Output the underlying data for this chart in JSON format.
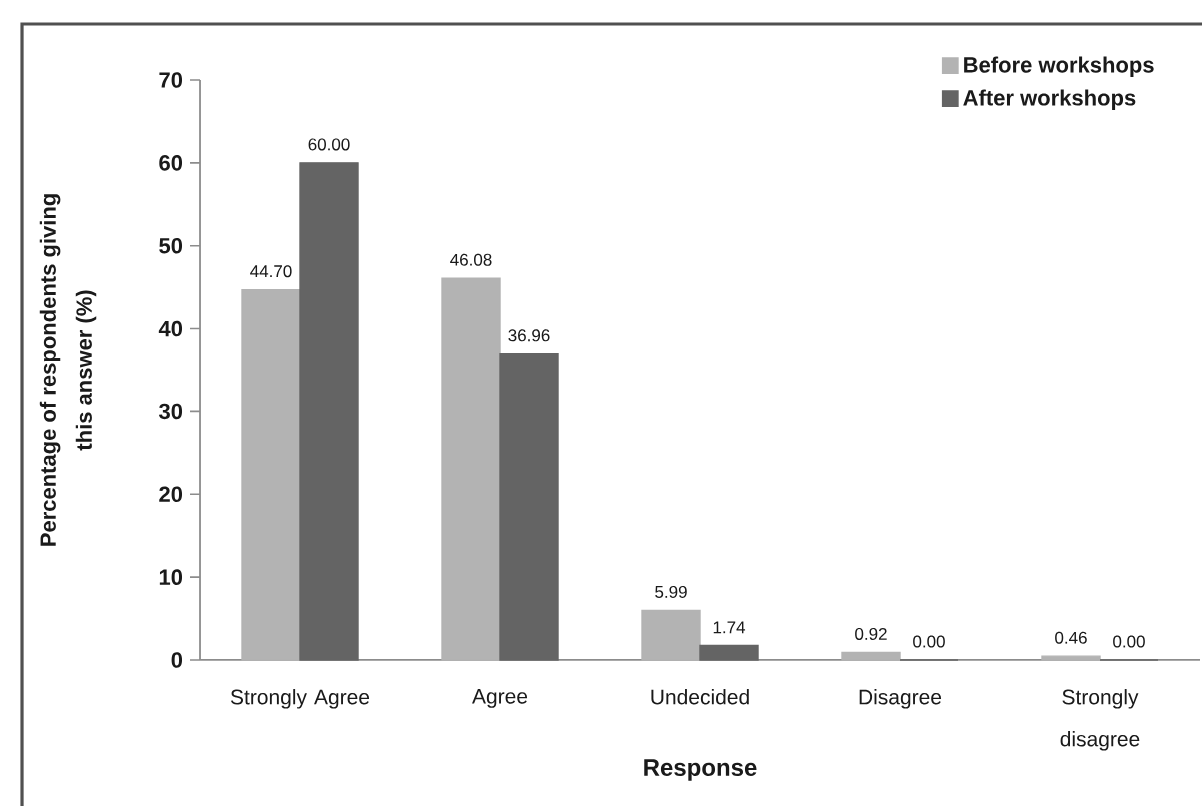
{
  "chart_data": {
    "type": "bar",
    "xlabel": "Response",
    "ylabel": "Percentage of respondents giving this answer (%)",
    "categories": [
      "Strongly Agree",
      "Agree",
      "Undecided",
      "Disagree",
      "Strongly disagree"
    ],
    "series": [
      {
        "name": "Before workshops",
        "color": "#b3b3b3",
        "values": [
          44.7,
          46.08,
          5.99,
          0.92,
          0.46
        ],
        "value_labels": [
          "44.70",
          "46.08",
          "5.99",
          "0.92",
          "0.46"
        ]
      },
      {
        "name": "After workshops",
        "color": "#646464",
        "values": [
          60.0,
          36.96,
          1.74,
          0.0,
          0.0
        ],
        "value_labels": [
          "60.00",
          "36.96",
          "1.74",
          "0.00",
          "0.00"
        ]
      }
    ],
    "ylim": [
      0,
      70
    ],
    "yticks": [
      0,
      10,
      20,
      30,
      40,
      50,
      60,
      70
    ],
    "legend": "top right"
  }
}
